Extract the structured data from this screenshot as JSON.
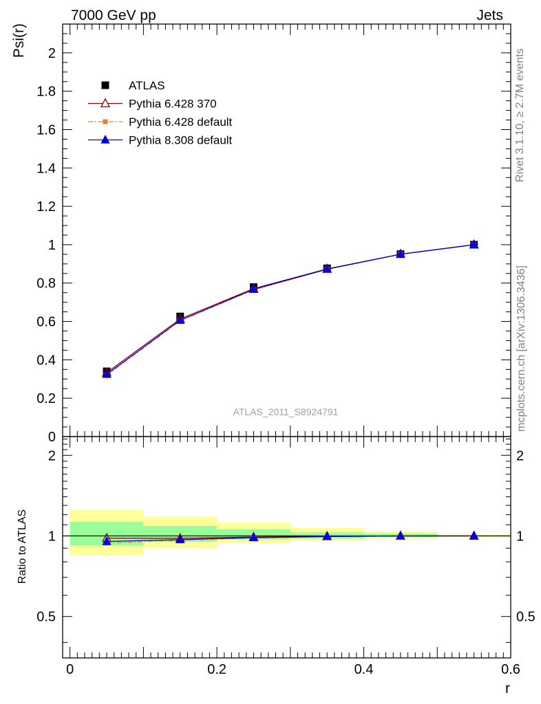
{
  "header": {
    "left": "7000 GeV pp",
    "right": "Jets"
  },
  "side_labels": {
    "rivet": "Rivet 3.1.10, ≥ 2.7M events",
    "mcplots": "mcplots.cern.ch [arXiv:1306.3436]"
  },
  "analysis_label": "ATLAS_2011_S8924791",
  "colors": {
    "data": "#000000",
    "p6_370": "#8b0000",
    "p6_default": "#f07f2d",
    "p8_default": "#0000e6",
    "band_inner": "#99ff99",
    "band_outer": "#ffff99"
  },
  "chart_data": [
    {
      "type": "line",
      "ylabel": "Psi(r)",
      "xlabel": "r",
      "xlim": [
        -0.01,
        0.6
      ],
      "ylim": [
        0,
        2.15
      ],
      "y_ticks": [
        "0",
        "0.2",
        "0.4",
        "0.6",
        "0.8",
        "1",
        "1.2",
        "1.4",
        "1.6",
        "1.8",
        "2"
      ],
      "legend_placement": "top-left",
      "x": [
        0.05,
        0.15,
        0.25,
        0.35,
        0.45,
        0.55
      ],
      "series": [
        {
          "name": "ATLAS",
          "values": [
            0.34,
            0.626,
            0.779,
            0.877,
            0.951,
            1.0
          ]
        },
        {
          "name": "Pythia 6.428 370",
          "values": [
            0.333,
            0.613,
            0.771,
            0.874,
            0.951,
            1.0
          ]
        },
        {
          "name": "Pythia 6.428 default",
          "values": [
            0.32,
            0.603,
            0.765,
            0.872,
            0.952,
            1.0
          ]
        },
        {
          "name": "Pythia 8.308 default",
          "values": [
            0.324,
            0.606,
            0.767,
            0.872,
            0.95,
            1.0
          ]
        }
      ]
    },
    {
      "type": "line",
      "ylabel": "Ratio to ATLAS",
      "xlabel": "r",
      "xlim": [
        -0.01,
        0.6
      ],
      "ylim": [
        0.35,
        2.35
      ],
      "y_ticks": [
        "0.5",
        "1",
        "2"
      ],
      "x_ticks": [
        "0",
        "0.2",
        "0.4",
        "0.6"
      ],
      "x": [
        0.05,
        0.15,
        0.25,
        0.35,
        0.45,
        0.55
      ],
      "bands": {
        "x_edges": [
          0.0,
          0.1,
          0.2,
          0.3,
          0.4,
          0.5,
          0.6
        ],
        "inner": [
          [
            0.92,
            1.13
          ],
          [
            0.95,
            1.09
          ],
          [
            0.97,
            1.06
          ],
          [
            0.98,
            1.03
          ],
          [
            0.99,
            1.02
          ],
          [
            1.0,
            1.0
          ]
        ],
        "outer": [
          [
            0.85,
            1.25
          ],
          [
            0.9,
            1.18
          ],
          [
            0.94,
            1.12
          ],
          [
            0.96,
            1.07
          ],
          [
            0.98,
            1.04
          ],
          [
            0.99,
            1.01
          ]
        ]
      },
      "series": [
        {
          "name": "Pythia 6.428 370",
          "values": [
            0.98,
            0.979,
            0.99,
            0.997,
            1.0,
            1.0
          ]
        },
        {
          "name": "Pythia 6.428 default",
          "values": [
            0.94,
            0.963,
            0.982,
            0.994,
            1.001,
            1.0
          ]
        },
        {
          "name": "Pythia 8.308 default",
          "values": [
            0.953,
            0.968,
            0.985,
            0.994,
            0.999,
            1.0
          ]
        }
      ]
    }
  ]
}
